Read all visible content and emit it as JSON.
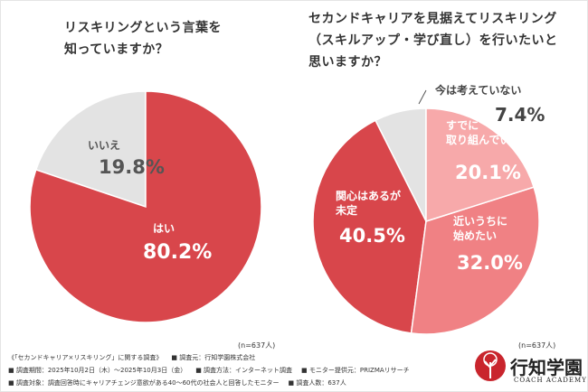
{
  "chart_data": [
    {
      "type": "pie",
      "title": "リスキリングという言葉を\n知っていますか？",
      "categories": [
        "はい",
        "いいえ"
      ],
      "values": [
        80.2,
        19.8
      ],
      "value_labels": [
        "80.2%",
        "19.8%"
      ],
      "colors": [
        "#d8464b",
        "#e3e3e3"
      ],
      "note": "(n=637人)"
    },
    {
      "type": "pie",
      "title": "セカンドキャリアを見据えてリスキリング\n（スキルアップ・学び直し）を行いたいと\n思いますか？",
      "categories": [
        "すでに\n取り組んでいる",
        "近いうちに\n始めたい",
        "関心はあるが\n未定",
        "今は考えていない"
      ],
      "values": [
        20.1,
        32.0,
        40.5,
        7.4
      ],
      "value_labels": [
        "20.1%",
        "32.0%",
        "40.5%",
        "7.4%"
      ],
      "colors": [
        "#f7a9aa",
        "#f08184",
        "#d8464b",
        "#e3e3e3"
      ],
      "note": "(n=637人)"
    }
  ],
  "footer": {
    "rows": [
      [
        "《「セカンドキャリア×リスキリング」に関する調査》",
        "■ 調査元：行知学園株式会社"
      ],
      [
        "■ 調査期間：2025年10月2日（木）～2025年10月3日（金）",
        "■ 調査方法：インターネット調査",
        "■ モニター提供元：PRIZMAリサーチ"
      ],
      [
        "■ 調査対象：調査回答時にキャリアチェンジ意欲がある40～60代の社会人と回答したモニター",
        "■ 調査人数：637人"
      ]
    ]
  },
  "logo": {
    "name": "行知学園",
    "subtitle": "COACH ACADEMY"
  }
}
